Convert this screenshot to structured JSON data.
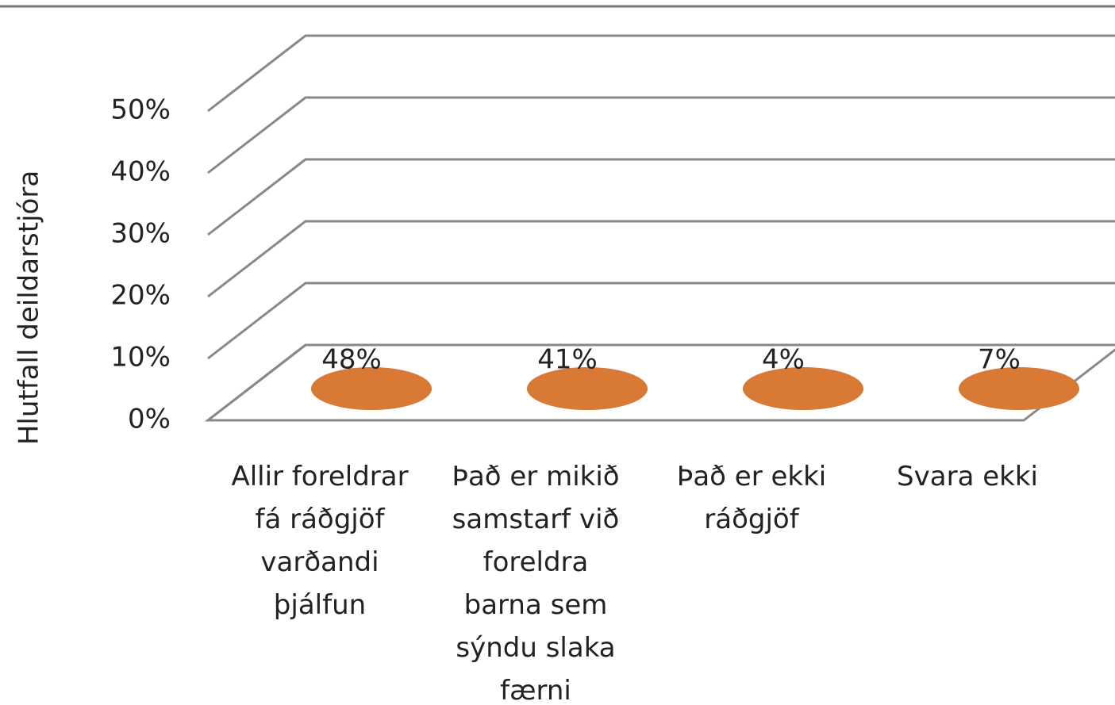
{
  "chart_data": {
    "type": "bar3d",
    "y_axis_label": "Hlutfall deildarstjóra",
    "categories": [
      "Allir foreldrar fá ráðgjöf varðandi þjálfun",
      "Það er mikið samstarf við foreldra barna sem sýndu slaka færni",
      "Það er ekki ráðgjöf",
      "Svara ekki"
    ],
    "values": [
      48,
      41,
      4,
      7
    ],
    "value_labels": [
      "48%",
      "41%",
      "4%",
      "7%"
    ],
    "color": "#f79646",
    "ylim": [
      0,
      50
    ],
    "yticks": [
      {
        "value": 0,
        "label": "0%"
      },
      {
        "value": 10,
        "label": "10%"
      },
      {
        "value": 20,
        "label": "20%"
      },
      {
        "value": 30,
        "label": "30%"
      },
      {
        "value": 40,
        "label": "40%"
      },
      {
        "value": 50,
        "label": "50%"
      }
    ],
    "grid": true
  }
}
